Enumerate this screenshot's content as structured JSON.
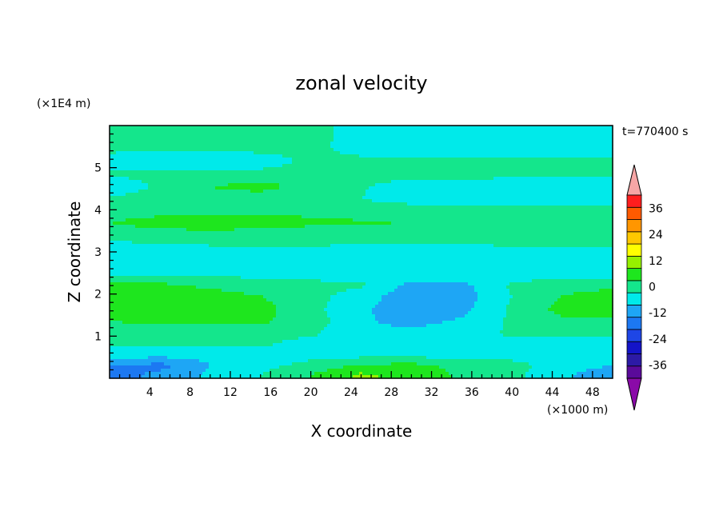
{
  "chart_data": {
    "type": "heatmap",
    "title": "zonal velocity",
    "xlabel": "X coordinate",
    "ylabel": "Z coordinate",
    "x_unit": "(×1000 m)",
    "y_unit": "(×1E4 m)",
    "time_label": "t=770400 s",
    "xlim": [
      0,
      50
    ],
    "ylim": [
      0,
      6
    ],
    "x_ticks": [
      4,
      8,
      12,
      16,
      20,
      24,
      28,
      32,
      36,
      40,
      44,
      48
    ],
    "y_ticks": [
      1,
      2,
      3,
      4,
      5
    ],
    "grid": false,
    "colorbar": {
      "placement": "right",
      "tick_labels": [
        "36",
        "24",
        "12",
        "0",
        "-12",
        "-24",
        "-36"
      ],
      "tick_values": [
        36,
        24,
        12,
        0,
        -12,
        -24,
        -36
      ],
      "levels": [
        -42,
        -36,
        -30,
        -24,
        -18,
        -12,
        -6,
        0,
        6,
        12,
        18,
        24,
        30,
        36,
        42
      ],
      "colors": [
        "#5a0a9a",
        "#2c1aa6",
        "#1414c8",
        "#1e46e6",
        "#1c78f2",
        "#1ea6f5",
        "#00eaea",
        "#14e68c",
        "#1ee61e",
        "#96f000",
        "#ffff00",
        "#ffc800",
        "#ff9600",
        "#ff5a00",
        "#ff1e1e"
      ],
      "under_color": "#8a0aa8",
      "over_color": "#f6a6a6"
    },
    "rows": [
      {
        "z": 5.75,
        "x": [
          0,
          10,
          20,
          25,
          30,
          40,
          50
        ],
        "u": [
          3,
          3,
          3,
          -4,
          -4,
          -4,
          -5
        ]
      },
      {
        "z": 5.45,
        "x": [
          0,
          10,
          20,
          25,
          30,
          40,
          50
        ],
        "u": [
          2,
          2,
          2,
          -3,
          -3,
          -3,
          -3
        ]
      },
      {
        "z": 5.15,
        "x": [
          0,
          5,
          10,
          15,
          20,
          30,
          40,
          50
        ],
        "u": [
          -4,
          -6,
          -6,
          -4,
          2,
          2,
          2,
          2
        ]
      },
      {
        "z": 4.85,
        "x": [
          0,
          10,
          20,
          30,
          40,
          50
        ],
        "u": [
          1,
          2,
          3,
          2,
          2,
          2
        ]
      },
      {
        "z": 4.55,
        "x": [
          0,
          10,
          15,
          20,
          30,
          40,
          50
        ],
        "u": [
          -4,
          6,
          8,
          4,
          -3,
          -4,
          -4
        ]
      },
      {
        "z": 4.25,
        "x": [
          0,
          10,
          20,
          30,
          40,
          50
        ],
        "u": [
          1,
          4,
          2,
          -2,
          -2,
          -3
        ]
      },
      {
        "z": 3.95,
        "x": [
          0,
          10,
          20,
          30,
          40,
          50
        ],
        "u": [
          4,
          5,
          5,
          3,
          2,
          2
        ]
      },
      {
        "z": 3.7,
        "x": [
          0,
          5,
          10,
          20,
          30,
          40,
          50
        ],
        "u": [
          6,
          8,
          9,
          7,
          6,
          6,
          6
        ]
      },
      {
        "z": 3.45,
        "x": [
          0,
          10,
          20,
          30,
          40,
          50
        ],
        "u": [
          4,
          5,
          4,
          3,
          4,
          4
        ]
      },
      {
        "z": 3.2,
        "x": [
          0,
          10,
          20,
          30,
          40,
          50
        ],
        "u": [
          -1,
          1,
          1,
          1,
          1,
          1
        ]
      },
      {
        "z": 2.95,
        "x": [
          0,
          10,
          20,
          30,
          40,
          50
        ],
        "u": [
          -4,
          -4,
          -4,
          -5,
          -4,
          -4
        ]
      },
      {
        "z": 2.7,
        "x": [
          0,
          10,
          20,
          30,
          40,
          50
        ],
        "u": [
          -5,
          -4,
          -4,
          -3,
          -4,
          -4
        ]
      },
      {
        "z": 2.45,
        "x": [
          0,
          10,
          20,
          30,
          40,
          50
        ],
        "u": [
          -2,
          0,
          -2,
          -3,
          -2,
          -2
        ]
      },
      {
        "z": 2.2,
        "x": [
          0,
          5,
          10,
          15,
          20,
          25,
          30,
          35,
          40,
          45,
          50
        ],
        "u": [
          8,
          8,
          4,
          1,
          2,
          1,
          -8,
          -8,
          1,
          3,
          4
        ]
      },
      {
        "z": 1.95,
        "x": [
          0,
          5,
          10,
          15,
          20,
          25,
          30,
          35,
          40,
          45,
          50
        ],
        "u": [
          9,
          12,
          10,
          6,
          2,
          -3,
          -10,
          -9,
          0,
          6,
          10
        ]
      },
      {
        "z": 1.65,
        "x": [
          0,
          5,
          10,
          15,
          20,
          25,
          30,
          35,
          40,
          45,
          50
        ],
        "u": [
          10,
          11,
          11,
          8,
          2,
          -5,
          -10,
          -8,
          1,
          8,
          8
        ]
      },
      {
        "z": 1.35,
        "x": [
          0,
          5,
          10,
          15,
          20,
          25,
          30,
          35,
          40,
          45,
          50
        ],
        "u": [
          6,
          7,
          7,
          7,
          3,
          -5,
          -8,
          -5,
          1,
          5,
          5
        ]
      },
      {
        "z": 1.05,
        "x": [
          0,
          5,
          10,
          15,
          20,
          25,
          30,
          35,
          40,
          45,
          50
        ],
        "u": [
          3,
          3,
          3,
          3,
          1,
          -5,
          -4,
          -3,
          1,
          2,
          2
        ]
      },
      {
        "z": 0.8,
        "x": [
          0,
          10,
          15,
          20,
          25,
          30,
          40,
          50
        ],
        "u": [
          1,
          1,
          1,
          -3,
          -4,
          -4,
          -3,
          -3
        ]
      },
      {
        "z": 0.55,
        "x": [
          0,
          5,
          10,
          20,
          30,
          40,
          45,
          50
        ],
        "u": [
          -3,
          -4,
          -4,
          -2,
          -2,
          -2,
          -3,
          -3
        ]
      },
      {
        "z": 0.3,
        "x": [
          0,
          5,
          10,
          15,
          20,
          25,
          30,
          35,
          40,
          45,
          50
        ],
        "u": [
          -12,
          -14,
          -6,
          -2,
          2,
          7,
          8,
          4,
          2,
          -3,
          -6
        ]
      },
      {
        "z": 0.08,
        "x": [
          0,
          5,
          10,
          15,
          20,
          25,
          30,
          35,
          40,
          45,
          50
        ],
        "u": [
          -16,
          -10,
          -5,
          0,
          6,
          13,
          10,
          5,
          2,
          -5,
          -10
        ]
      }
    ]
  }
}
